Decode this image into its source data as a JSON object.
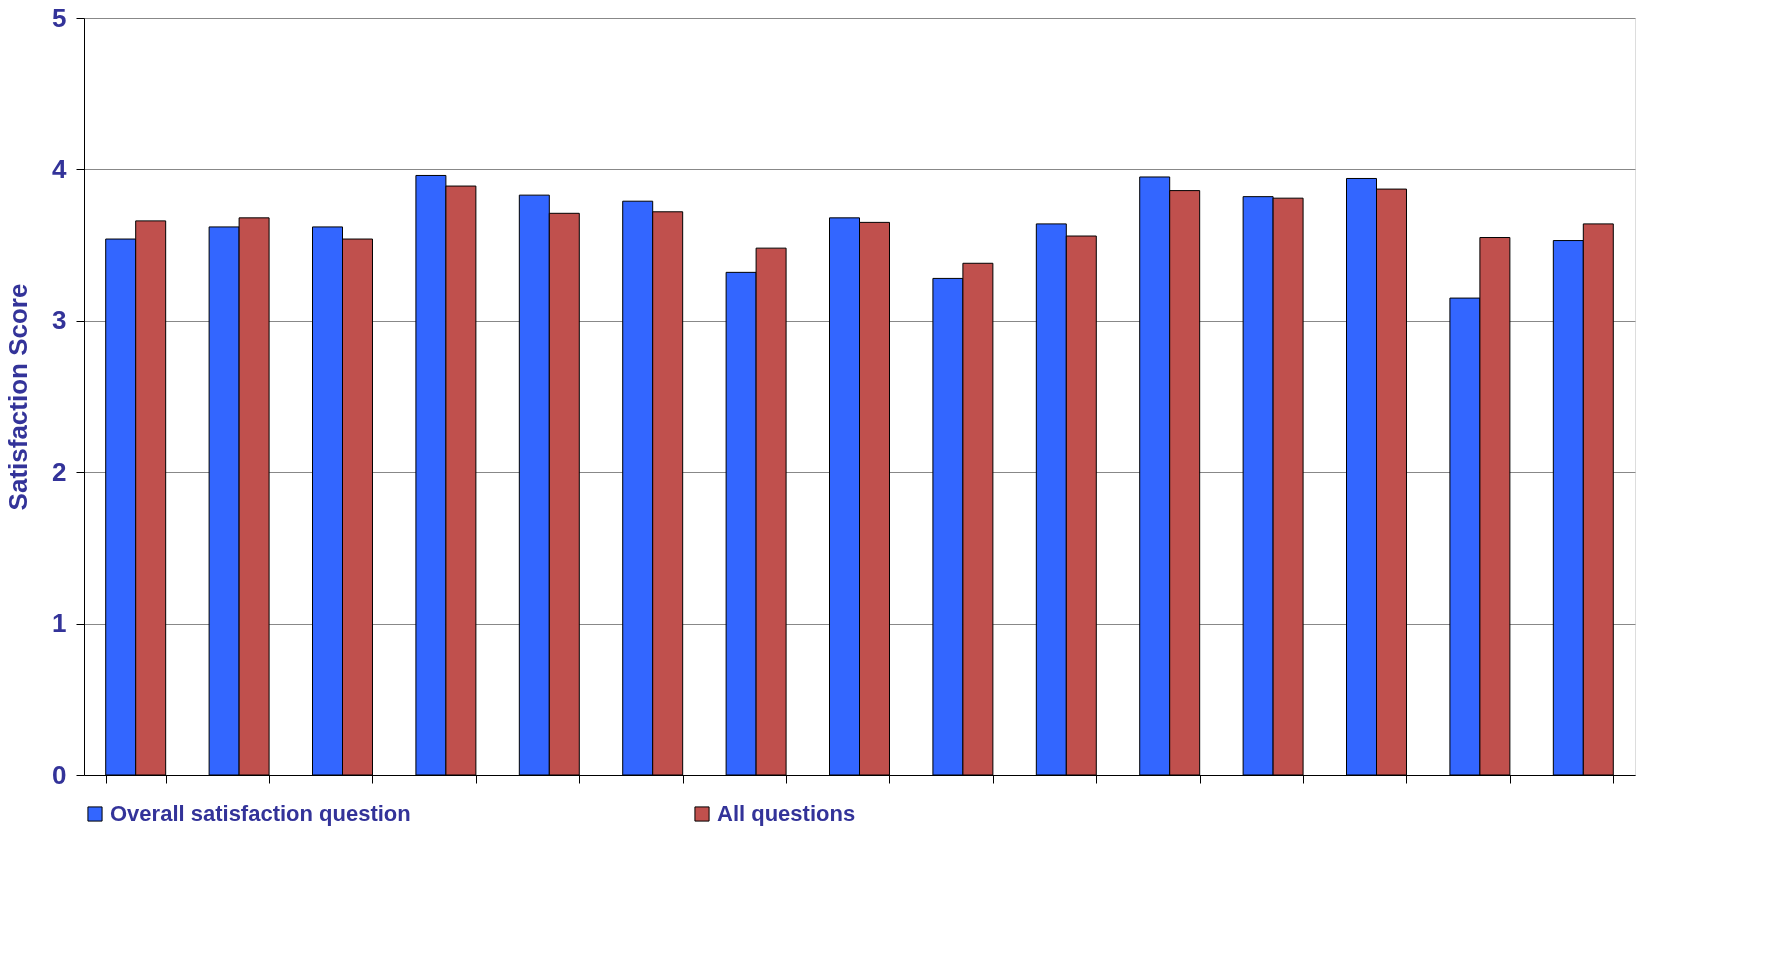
{
  "chart_data": {
    "type": "bar",
    "ylabel": "Satisfaction Score",
    "categories": [
      null,
      null,
      null,
      null,
      null,
      null,
      null,
      null,
      null,
      null,
      null,
      null,
      null,
      null,
      null
    ],
    "series": [
      {
        "name": "Overall satisfaction question",
        "color": "#3366ff",
        "values": [
          3.54,
          3.62,
          3.62,
          3.96,
          3.83,
          3.79,
          3.32,
          3.68,
          3.28,
          3.64,
          3.95,
          3.82,
          3.94,
          3.15,
          3.53
        ]
      },
      {
        "name": "All questions",
        "color": "#c0504d",
        "values": [
          3.66,
          3.68,
          3.54,
          3.89,
          3.71,
          3.72,
          3.48,
          3.65,
          3.38,
          3.56,
          3.86,
          3.81,
          3.87,
          3.55,
          3.64
        ]
      }
    ],
    "ylim": [
      0,
      5
    ],
    "yticks": [
      0,
      1,
      2,
      3,
      4,
      5
    ],
    "grid": "y",
    "legend": "bottom"
  }
}
